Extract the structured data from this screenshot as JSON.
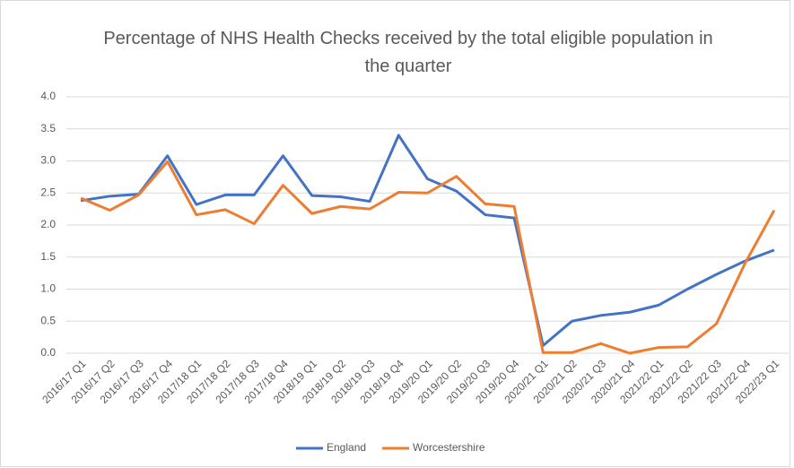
{
  "chart_data": {
    "type": "line",
    "title": "Percentage of NHS Health Checks received by the total eligible population in the quarter",
    "categories": [
      "2016/17 Q1",
      "2016/17 Q2",
      "2016/17 Q3",
      "2016/17 Q4",
      "2017/18 Q1",
      "2017/18 Q2",
      "2017/18 Q3",
      "2017/18 Q4",
      "2018/19 Q1",
      "2018/19 Q2",
      "2018/19 Q3",
      "2018/19 Q4",
      "2019/20 Q1",
      "2019/20 Q2",
      "2019/20 Q3",
      "2019/20 Q4",
      "2020/21 Q1",
      "2020/21 Q2",
      "2020/21 Q3",
      "2020/21 Q4",
      "2021/22 Q1",
      "2021/22 Q2",
      "2021/22 Q3",
      "2021/22 Q4",
      "2022/23 Q1"
    ],
    "series": [
      {
        "name": "England",
        "color": "#4472c4",
        "values": [
          2.38,
          2.45,
          2.48,
          3.08,
          2.32,
          2.47,
          2.47,
          3.08,
          2.46,
          2.44,
          2.37,
          3.4,
          2.72,
          2.53,
          2.16,
          2.11,
          0.12,
          0.5,
          0.59,
          0.64,
          0.75,
          1.0,
          1.23,
          1.44,
          1.61
        ]
      },
      {
        "name": "Worcestershire",
        "color": "#ed7d31",
        "values": [
          2.42,
          2.23,
          2.47,
          2.99,
          2.16,
          2.24,
          2.02,
          2.62,
          2.18,
          2.29,
          2.25,
          2.51,
          2.5,
          2.76,
          2.33,
          2.29,
          0.01,
          0.01,
          0.15,
          0.0,
          0.09,
          0.1,
          0.46,
          1.41,
          2.23
        ]
      }
    ],
    "ylim": [
      0,
      4
    ],
    "yticks": [
      {
        "value": 0,
        "label": "0.0"
      },
      {
        "value": 0.5,
        "label": "0.5"
      },
      {
        "value": 1,
        "label": "1.0"
      },
      {
        "value": 1.5,
        "label": "1.5"
      },
      {
        "value": 2,
        "label": "2.0"
      },
      {
        "value": 2.5,
        "label": "2.5"
      },
      {
        "value": 3,
        "label": "3.0"
      },
      {
        "value": 3.5,
        "label": "3.5"
      },
      {
        "value": 4,
        "label": "4.0"
      }
    ],
    "grid": true,
    "legend": "bottom"
  }
}
